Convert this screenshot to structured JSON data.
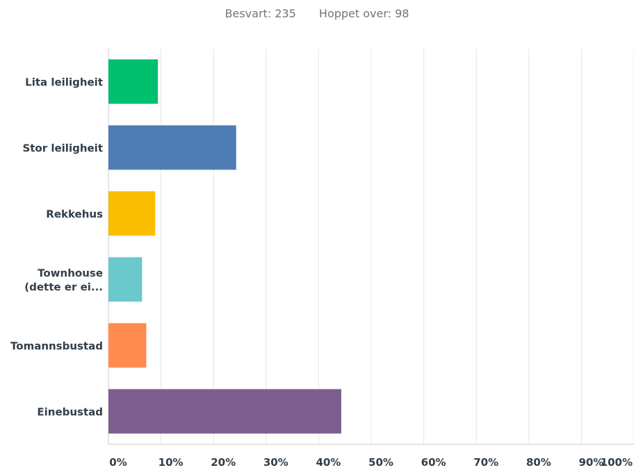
{
  "summary": {
    "answered": "Besvart: 235",
    "skipped": "Hoppet over: 98"
  },
  "chart_data": {
    "type": "bar",
    "orientation": "horizontal",
    "categories": [
      [
        "Lita leiligheit"
      ],
      [
        "Stor leiligheit"
      ],
      [
        "Rekkehus"
      ],
      [
        "Townhouse",
        "(dette er ei..."
      ],
      [
        "Tomannsbustad"
      ],
      [
        "Einebustad"
      ]
    ],
    "values": [
      9.4,
      24.3,
      8.9,
      6.4,
      7.2,
      44.3
    ],
    "colors": [
      "#00bf6f",
      "#507cb6",
      "#f9be00",
      "#6bc8cd",
      "#ff8b4f",
      "#7d5e90"
    ],
    "xlim": [
      0,
      100
    ],
    "xticks": [
      "0%",
      "10%",
      "20%",
      "30%",
      "40%",
      "50%",
      "60%",
      "70%",
      "80%",
      "90%",
      "100%"
    ],
    "grid": true,
    "title": "",
    "xlabel": "",
    "ylabel": ""
  }
}
